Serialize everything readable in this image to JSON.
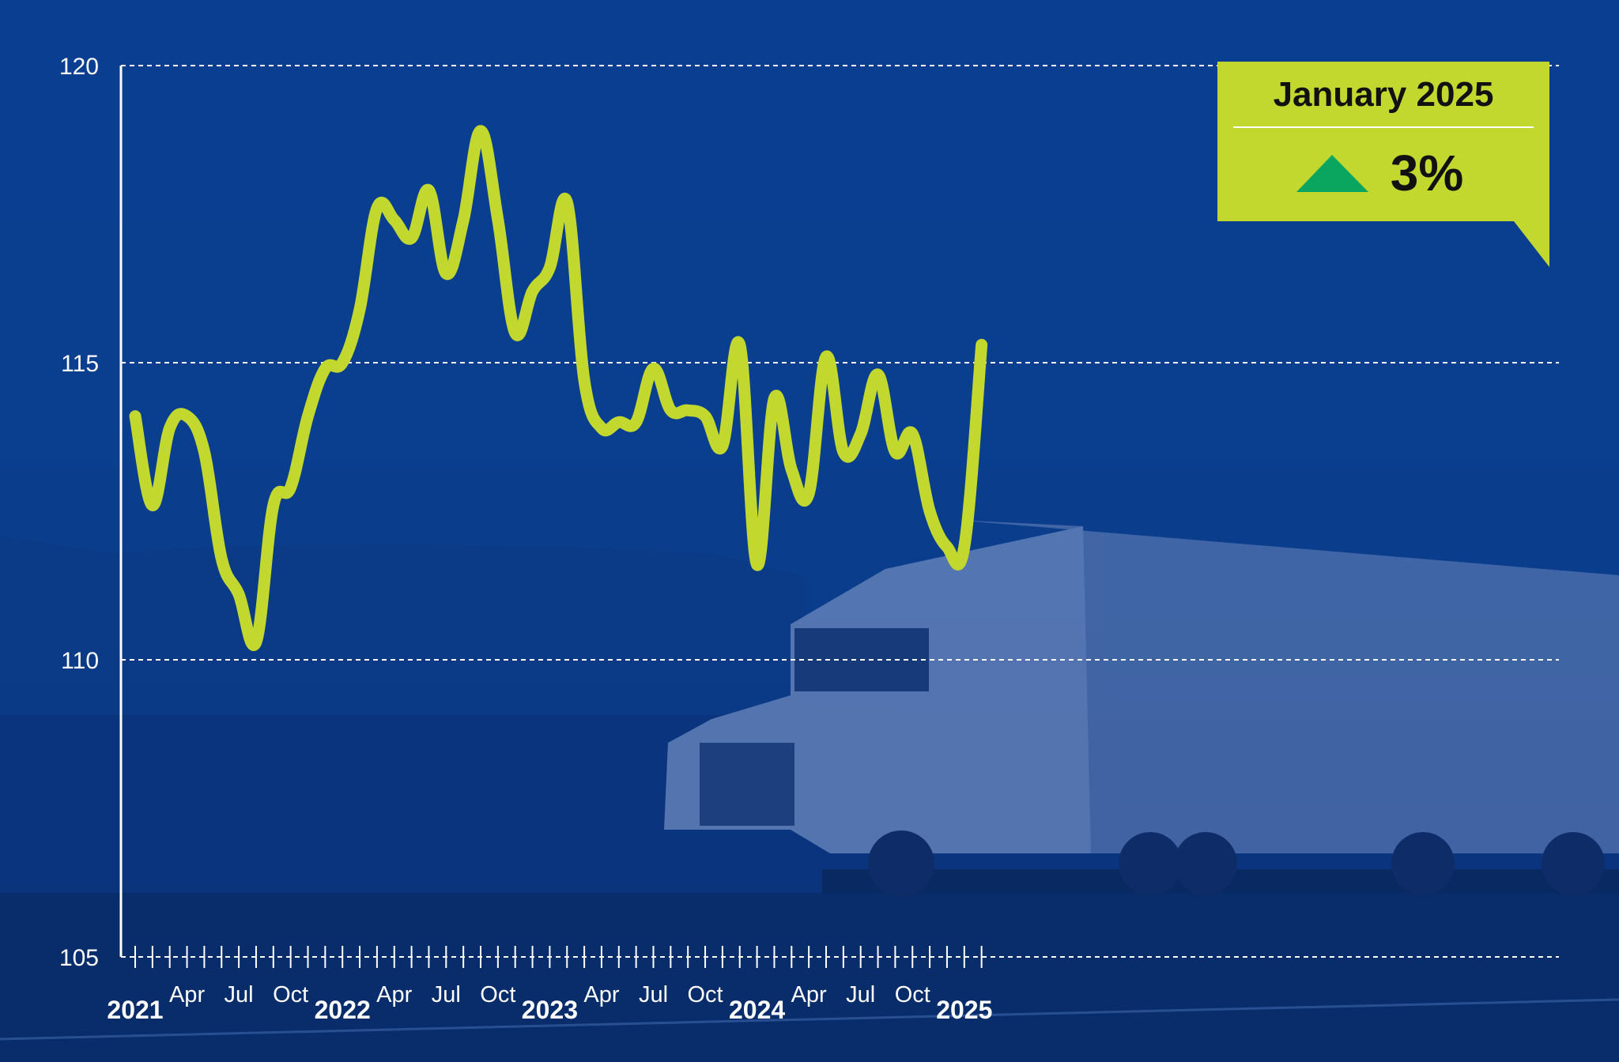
{
  "colors": {
    "background": "#0a3d8f",
    "line": "#c2d82e",
    "grid": "#ffffff",
    "callout_bg": "#c2d82e",
    "up_arrow": "#0aa65f",
    "text": "#ffffff"
  },
  "callout": {
    "title": "January 2025",
    "value": "3%",
    "direction_icon": "up-triangle-icon"
  },
  "chart_data": {
    "type": "line",
    "title": "",
    "xlabel": "",
    "ylabel": "",
    "ylim": [
      105,
      120
    ],
    "yticks": [
      105,
      110,
      115,
      120
    ],
    "grid": true,
    "x_labels": [
      {
        "label": "2021",
        "year": true,
        "month_index": 0
      },
      {
        "label": "Apr",
        "year": false,
        "month_index": 3
      },
      {
        "label": "Jul",
        "year": false,
        "month_index": 6
      },
      {
        "label": "Oct",
        "year": false,
        "month_index": 9
      },
      {
        "label": "2022",
        "year": true,
        "month_index": 12
      },
      {
        "label": "Apr",
        "year": false,
        "month_index": 15
      },
      {
        "label": "Jul",
        "year": false,
        "month_index": 18
      },
      {
        "label": "Oct",
        "year": false,
        "month_index": 21
      },
      {
        "label": "2023",
        "year": true,
        "month_index": 24
      },
      {
        "label": "Apr",
        "year": false,
        "month_index": 27
      },
      {
        "label": "Jul",
        "year": false,
        "month_index": 30
      },
      {
        "label": "Oct",
        "year": false,
        "month_index": 33
      },
      {
        "label": "2024",
        "year": true,
        "month_index": 36
      },
      {
        "label": "Apr",
        "year": false,
        "month_index": 39
      },
      {
        "label": "Jul",
        "year": false,
        "month_index": 42
      },
      {
        "label": "Oct",
        "year": false,
        "month_index": 45
      },
      {
        "label": "2025",
        "year": true,
        "month_index": 48
      }
    ],
    "series": [
      {
        "values": [
          114.1,
          112.6,
          113.9,
          114.1,
          113.5,
          111.7,
          111.1,
          110.3,
          112.6,
          112.9,
          114.1,
          114.9,
          115.0,
          115.9,
          117.6,
          117.4,
          117.1,
          117.9,
          116.5,
          117.4,
          118.9,
          117.4,
          115.5,
          116.2,
          116.6,
          117.7,
          114.7,
          113.9,
          114.0,
          114.0,
          114.9,
          114.2,
          114.2,
          114.1,
          113.6,
          115.3,
          111.6,
          114.4,
          113.2,
          112.8,
          115.1,
          113.5,
          113.8,
          114.8,
          113.5,
          113.8,
          112.5,
          111.9,
          111.9,
          115.3
        ]
      }
    ]
  }
}
